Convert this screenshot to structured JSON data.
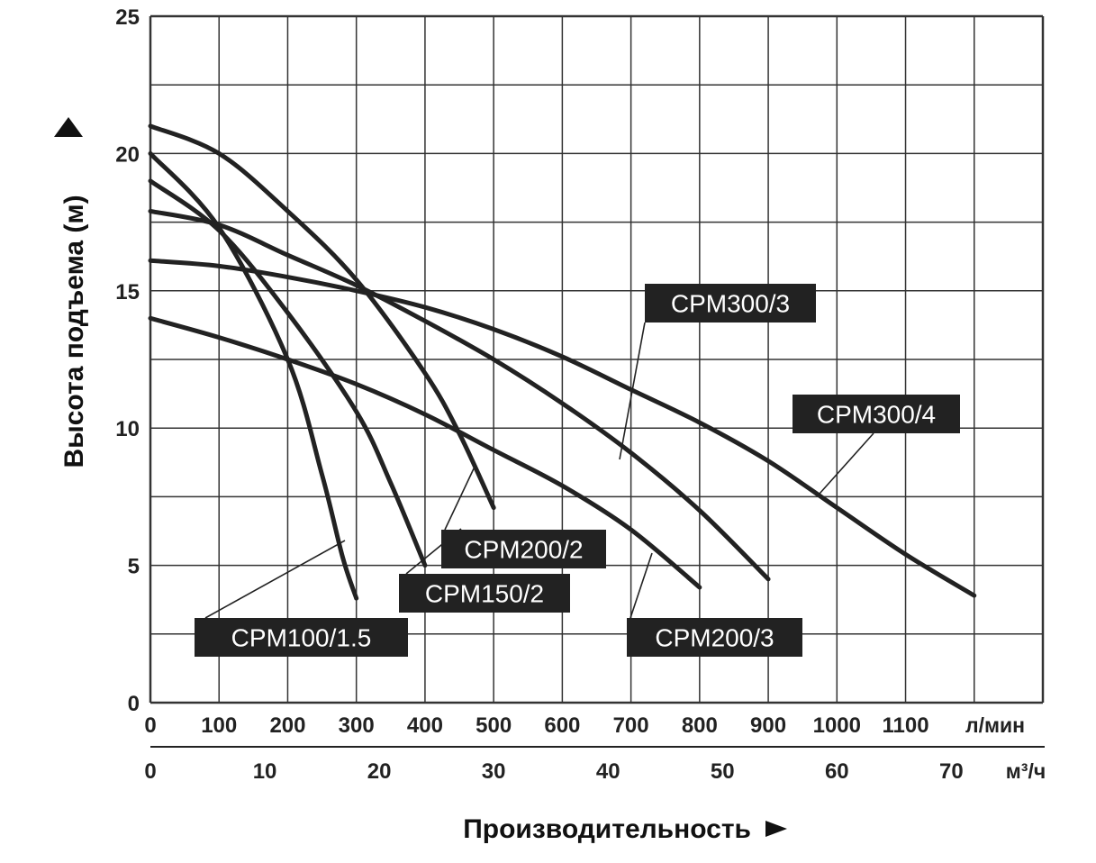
{
  "chart_data": {
    "type": "line",
    "title": "",
    "ylabel": "Высота подъема (м)",
    "xlabel": "Производительность",
    "ylim": [
      0,
      25
    ],
    "y_ticks": [
      "0",
      "5",
      "10",
      "15",
      "20",
      "25"
    ],
    "xlim_lpm": [
      0,
      1300
    ],
    "x_ticks_lpm": [
      "0",
      "100",
      "200",
      "300",
      "400",
      "500",
      "600",
      "700",
      "800",
      "900",
      "1000",
      "1100"
    ],
    "x_unit_lpm": "л/мин",
    "x_ticks_m3h": [
      "0",
      "10",
      "20",
      "30",
      "40",
      "50",
      "60",
      "70"
    ],
    "x_unit_m3h": "м³/ч",
    "grid": true,
    "colors": {
      "curve": "#222222",
      "grid": "#333333",
      "label_bg": "#222222",
      "label_text": "#ffffff"
    },
    "series": [
      {
        "name": "CPM100/1.5",
        "x": [
          0,
          100,
          200,
          250,
          280,
          300
        ],
        "y": [
          20,
          17.3,
          12.5,
          8.3,
          5.3,
          3.8
        ]
      },
      {
        "name": "CPM150/2",
        "x": [
          0,
          100,
          200,
          300,
          350,
          400
        ],
        "y": [
          19,
          17.2,
          14.2,
          10.6,
          8.0,
          5.0
        ]
      },
      {
        "name": "CPM200/2",
        "x": [
          0,
          100,
          200,
          300,
          400,
          450,
          500
        ],
        "y": [
          21,
          20.0,
          17.9,
          15.4,
          12.0,
          9.8,
          7.1
        ]
      },
      {
        "name": "CPM200/3",
        "x": [
          0,
          100,
          200,
          300,
          400,
          500,
          600,
          700,
          800
        ],
        "y": [
          14,
          13.3,
          12.5,
          11.6,
          10.5,
          9.2,
          7.9,
          6.3,
          4.2
        ]
      },
      {
        "name": "CPM300/3",
        "x": [
          0,
          100,
          200,
          300,
          400,
          500,
          600,
          700,
          800,
          900
        ],
        "y": [
          17.9,
          17.4,
          16.3,
          15.2,
          13.9,
          12.5,
          10.9,
          9.1,
          7.0,
          4.5
        ]
      },
      {
        "name": "CPM300/4",
        "x": [
          0,
          100,
          200,
          300,
          400,
          500,
          600,
          700,
          800,
          900,
          1000,
          1100,
          1200
        ],
        "y": [
          16.1,
          15.9,
          15.5,
          15.0,
          14.4,
          13.6,
          12.6,
          11.4,
          10.2,
          8.8,
          7.1,
          5.4,
          3.9
        ]
      }
    ],
    "annotations": [
      {
        "text": "CPM100/1.5",
        "series": "CPM100/1.5"
      },
      {
        "text": "CPM150/2",
        "series": "CPM150/2"
      },
      {
        "text": "CPM200/2",
        "series": "CPM200/2"
      },
      {
        "text": "CPM200/3",
        "series": "CPM200/3"
      },
      {
        "text": "CPM300/3",
        "series": "CPM300/3"
      },
      {
        "text": "CPM300/4",
        "series": "CPM300/4"
      }
    ]
  }
}
